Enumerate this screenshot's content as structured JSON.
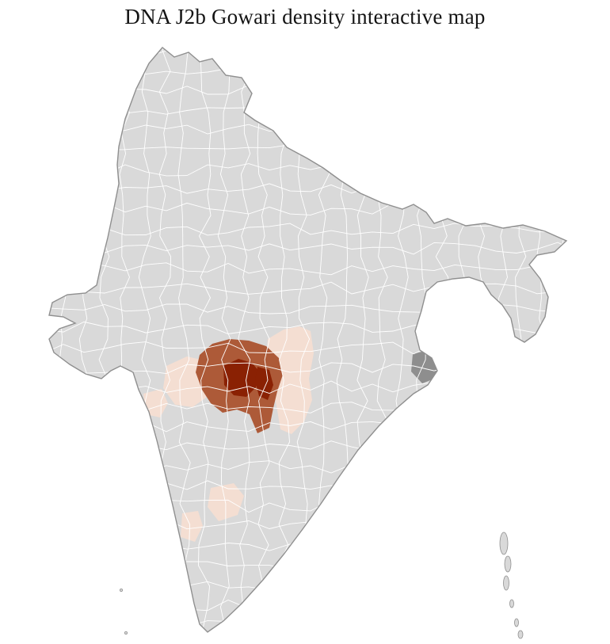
{
  "header": {
    "title": "DNA J2b Gowari density interactive map"
  },
  "map": {
    "region": "India",
    "colors": {
      "background": "#ffffff",
      "land": "#d9d9d9",
      "district_border": "#ffffff",
      "outline": "#8f8f8f",
      "density_low": "#f4ded2",
      "density_mid": "#ad5a38",
      "density_high": "#8a2103",
      "no_data": "#8e8e8e"
    },
    "density_levels": [
      "low",
      "medium",
      "high"
    ]
  }
}
